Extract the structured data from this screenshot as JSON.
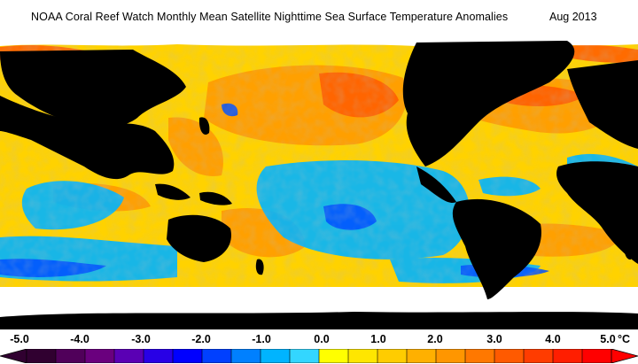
{
  "header": {
    "title": "NOAA Coral Reef Watch Monthly Mean Satellite Nighttime Sea Surface Temperature Anomalies",
    "date": "Aug 2013"
  },
  "map": {
    "projection": "equirectangular",
    "land_color": "#000000",
    "ice_color": "#ffffff"
  },
  "legend": {
    "ticks": [
      "-5.0",
      "-4.0",
      "-3.0",
      "-2.0",
      "-1.0",
      "0.0",
      "1.0",
      "2.0",
      "3.0",
      "4.0",
      "5.0"
    ],
    "unit": "°C",
    "min": -5.0,
    "max": 5.0,
    "colors": [
      "#300030",
      "#50005a",
      "#6a007e",
      "#5a00b4",
      "#2800e6",
      "#0000ff",
      "#0040ff",
      "#0080ff",
      "#00b4ff",
      "#33d6ff",
      "#ffff00",
      "#ffe600",
      "#ffcc00",
      "#ffb000",
      "#ff9600",
      "#ff7800",
      "#ff5a00",
      "#ff3c00",
      "#ff1e00",
      "#ff0000"
    ]
  }
}
